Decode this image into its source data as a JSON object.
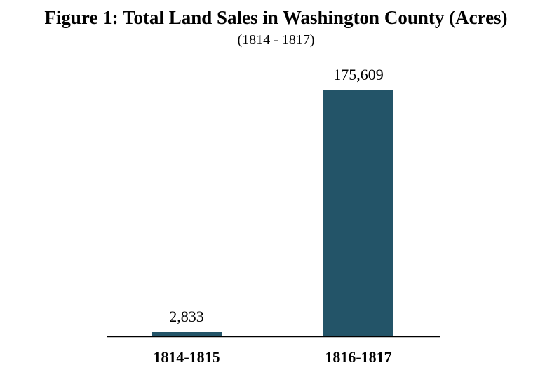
{
  "chart_data": {
    "type": "bar",
    "title": "Figure 1: Total Land Sales in Washington County (Acres)",
    "subtitle": "(1814 - 1817)",
    "categories": [
      "1814-1815",
      "1816-1817"
    ],
    "values": [
      2833,
      175609
    ],
    "value_labels": [
      "2,833",
      "175,609"
    ],
    "xlabel": "",
    "ylabel": "",
    "ylim": [
      0,
      175609
    ],
    "grid": false,
    "legend": "none",
    "bar_color": "#235468",
    "axis_color": "#000000"
  }
}
